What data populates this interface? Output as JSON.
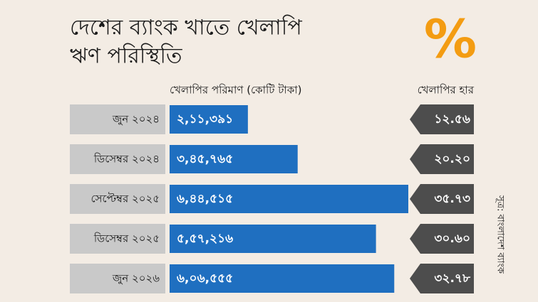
{
  "title_lines": [
    "দেশের ব্যাংক খাতে খেলাপি",
    "ঋণ পরিস্থিতি"
  ],
  "symbol": "%",
  "source": "সূত্র: বাংলাদেশ ব্যাংক",
  "chart_data": {
    "type": "bar",
    "categories": [
      "জুন ২০২৪",
      "ডিসেম্বর ২০২৪",
      "সেপ্টেম্বর ২০২৫",
      "ডিসেম্বর ২০২৫",
      "জুন ২০২৬"
    ],
    "series": [
      {
        "name": "খেলাপির পরিমাণ (কোটি টাকা)",
        "color": "#1f6fc0",
        "values": [
          211391,
          345765,
          644515,
          557216,
          606555
        ],
        "value_labels": [
          "২,১১,৩৯১",
          "৩,৪৫,৭৬৫",
          "৬,৪৪,৫১৫",
          "৫,৫৭,২১৬",
          "৬,০৬,৫৫৫"
        ]
      },
      {
        "name": "খেলাপির হার",
        "color": "#4d4d4d",
        "values": [
          12.56,
          20.2,
          35.73,
          30.6,
          32.78
        ],
        "value_labels": [
          "১২.৫৬",
          "২০.২০",
          "৩৫.৭৩",
          "৩০.৬০",
          "৩২.৭৮"
        ]
      }
    ]
  }
}
